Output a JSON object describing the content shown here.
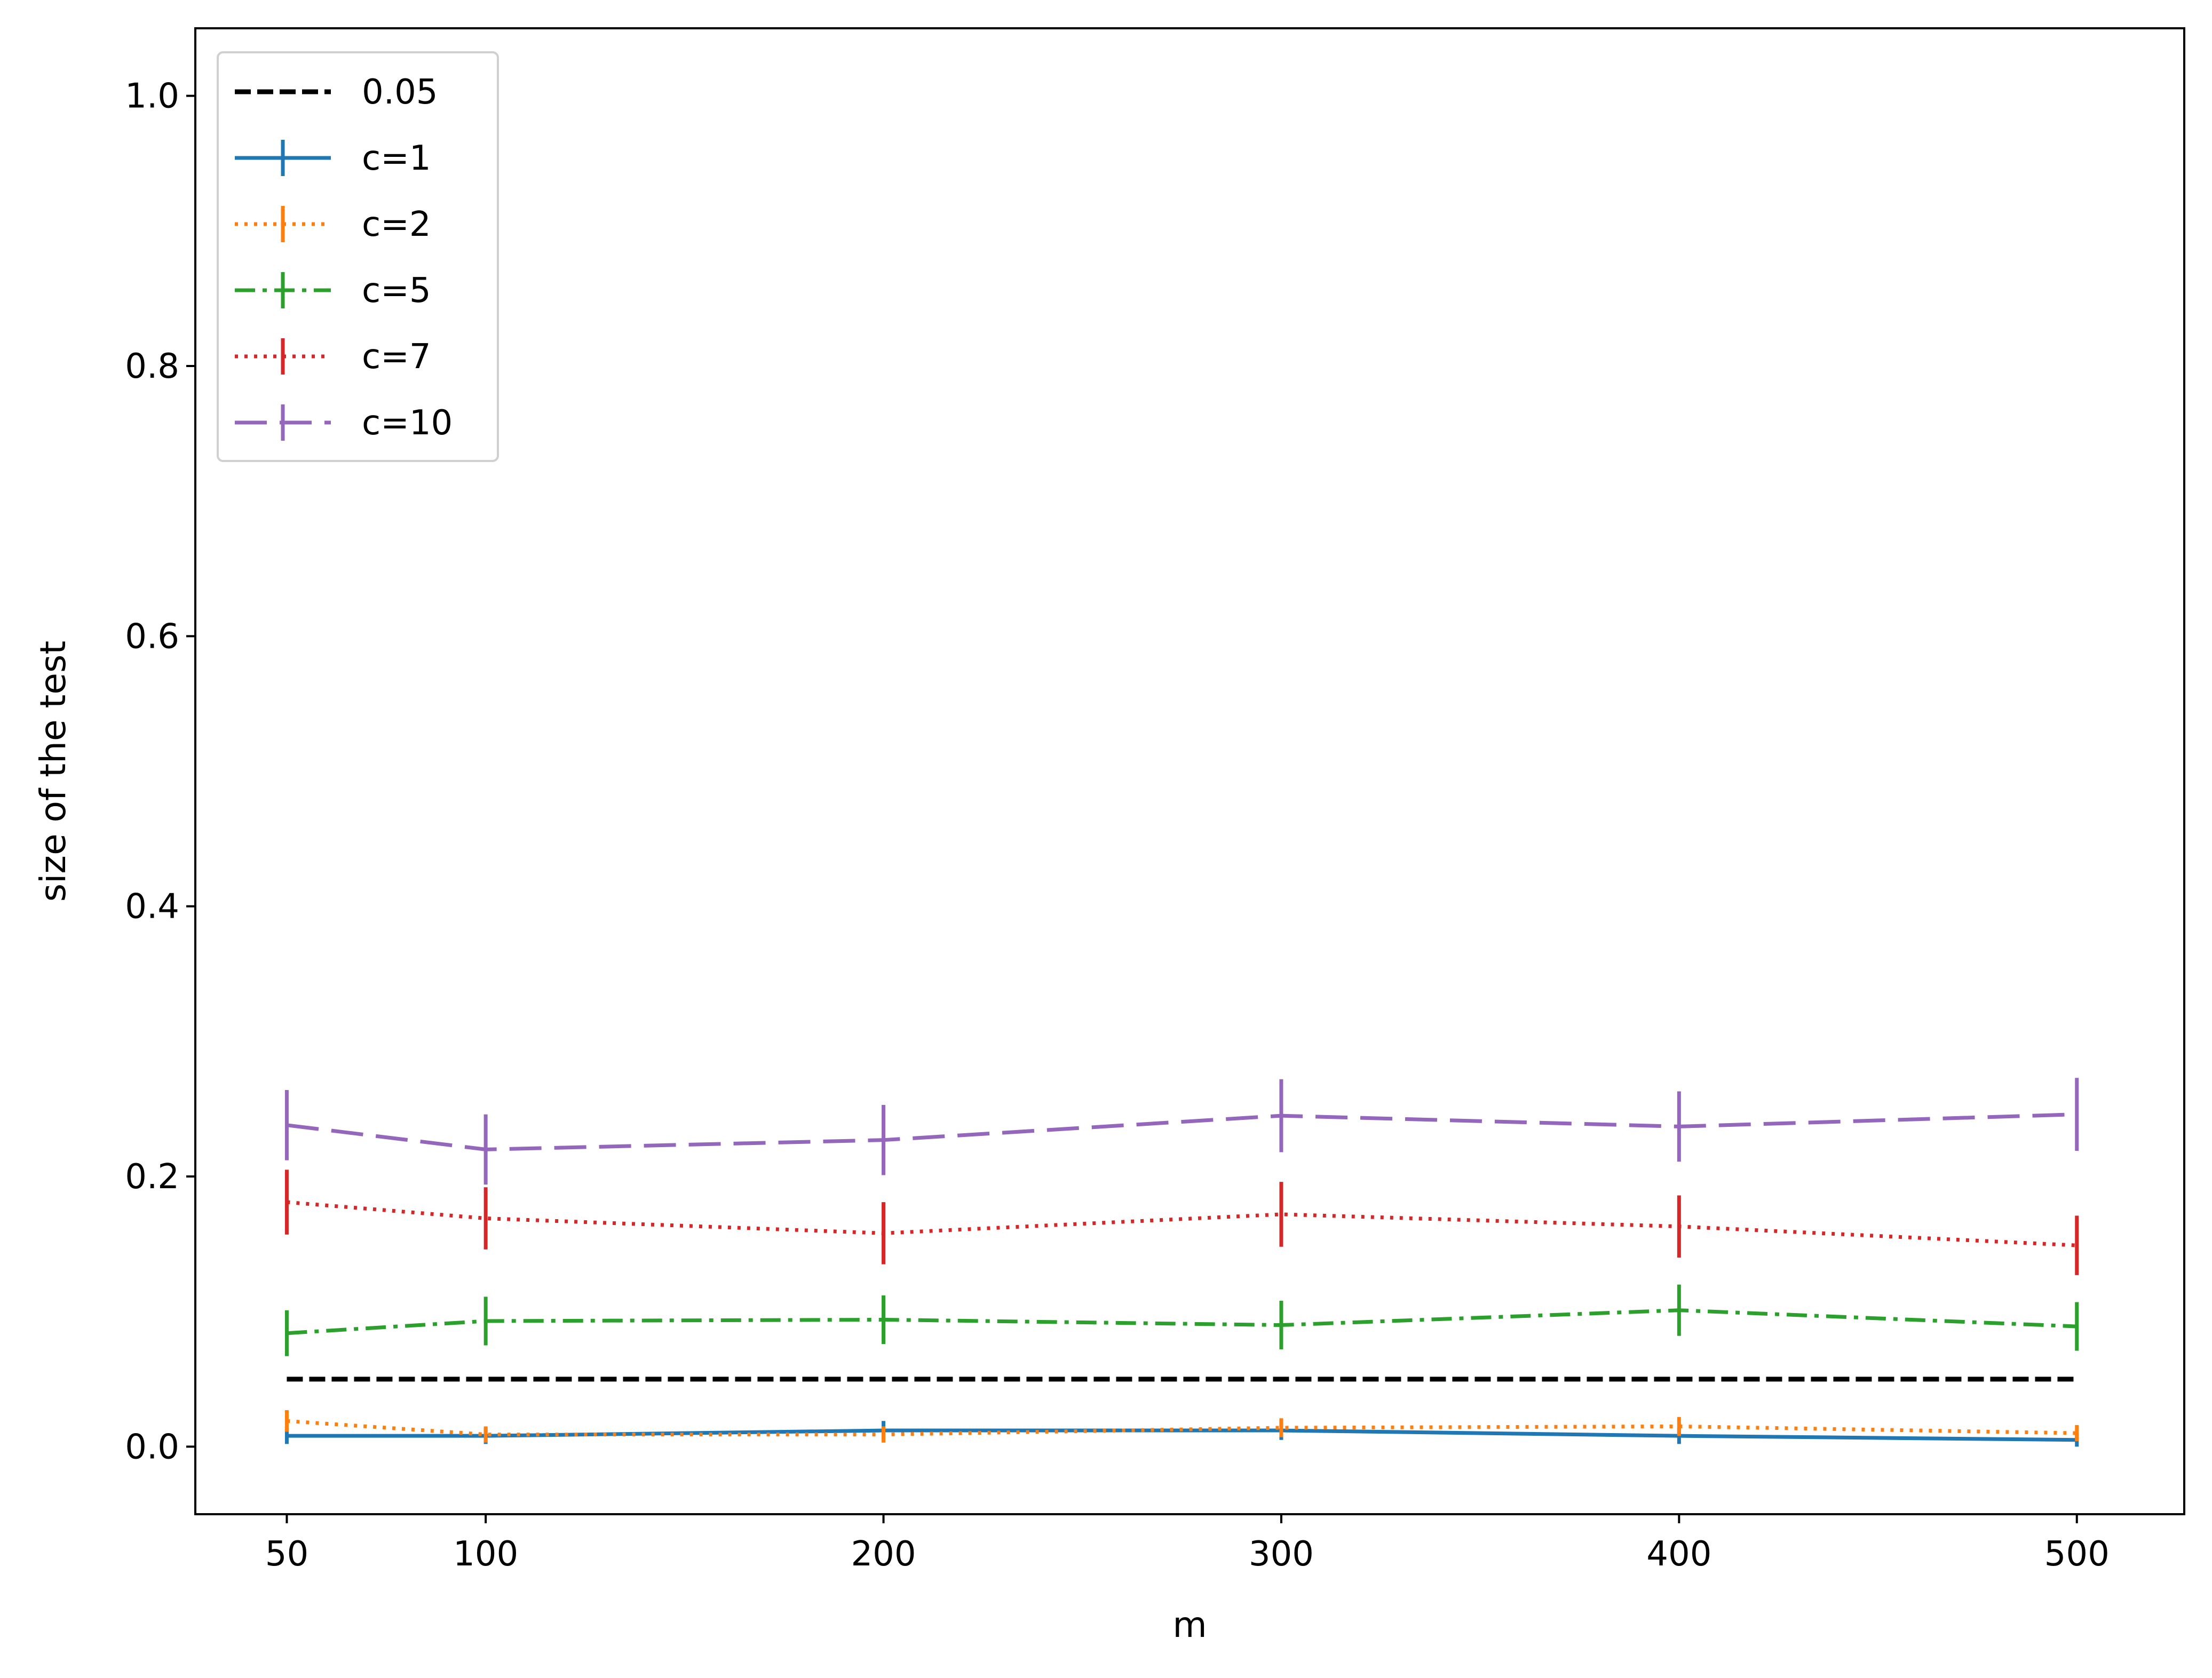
{
  "chart_data": {
    "type": "line",
    "title": "",
    "xlabel": "m",
    "ylabel": "size of the test",
    "xlim": [
      27,
      527
    ],
    "ylim": [
      -0.05,
      1.05
    ],
    "xticks": [
      50,
      100,
      200,
      300,
      400,
      500
    ],
    "xtick_labels": [
      "50",
      "100",
      "200",
      "300",
      "400",
      "500"
    ],
    "yticks": [
      0.0,
      0.2,
      0.4,
      0.6,
      0.8,
      1.0
    ],
    "ytick_labels": [
      "0.0",
      "0.2",
      "0.4",
      "0.6",
      "0.8",
      "1.0"
    ],
    "grid": false,
    "legend_position": "top-left",
    "x": [
      50,
      100,
      200,
      300,
      400,
      500
    ],
    "reference": {
      "name": "0.05",
      "value": 0.05,
      "color": "#000000",
      "style": "dashed"
    },
    "series": [
      {
        "name": "c=1",
        "color": "#1f77b4",
        "style": "solid",
        "values": [
          0.008,
          0.008,
          0.012,
          0.012,
          0.008,
          0.005
        ],
        "errors": [
          0.006,
          0.006,
          0.007,
          0.007,
          0.006,
          0.005
        ]
      },
      {
        "name": "c=2",
        "color": "#ff7f0e",
        "style": "dotted",
        "values": [
          0.019,
          0.009,
          0.009,
          0.014,
          0.015,
          0.01
        ],
        "errors": [
          0.008,
          0.006,
          0.006,
          0.007,
          0.007,
          0.006
        ]
      },
      {
        "name": "c=5",
        "color": "#2ca02c",
        "style": "dashdot",
        "values": [
          0.084,
          0.093,
          0.094,
          0.09,
          0.101,
          0.089
        ],
        "errors": [
          0.017,
          0.018,
          0.018,
          0.018,
          0.019,
          0.018
        ]
      },
      {
        "name": "c=7",
        "color": "#d62728",
        "style": "dotted",
        "values": [
          0.181,
          0.169,
          0.158,
          0.172,
          0.163,
          0.149
        ],
        "errors": [
          0.024,
          0.023,
          0.023,
          0.024,
          0.023,
          0.022
        ]
      },
      {
        "name": "c=10",
        "color": "#9467bd",
        "style": "longdash",
        "values": [
          0.238,
          0.22,
          0.227,
          0.245,
          0.237,
          0.246
        ],
        "errors": [
          0.026,
          0.026,
          0.026,
          0.027,
          0.026,
          0.027
        ]
      }
    ]
  }
}
